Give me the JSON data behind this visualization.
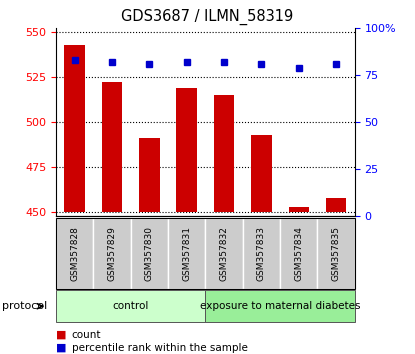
{
  "title": "GDS3687 / ILMN_58319",
  "samples": [
    "GSM357828",
    "GSM357829",
    "GSM357830",
    "GSM357831",
    "GSM357832",
    "GSM357833",
    "GSM357834",
    "GSM357835"
  ],
  "counts": [
    543,
    522,
    491,
    519,
    515,
    493,
    453,
    458
  ],
  "percentiles": [
    83,
    82,
    81,
    82,
    82,
    81,
    79,
    81
  ],
  "ylim_left": [
    448,
    552
  ],
  "ylim_right": [
    0,
    100
  ],
  "yticks_left": [
    450,
    475,
    500,
    525,
    550
  ],
  "yticks_right": [
    0,
    25,
    50,
    75,
    100
  ],
  "ytick_labels_right": [
    "0",
    "25",
    "50",
    "75",
    "100%"
  ],
  "bar_color": "#cc0000",
  "marker_color": "#0000cc",
  "bar_bottom": 450,
  "groups": [
    {
      "label": "control",
      "start": 0,
      "end": 4,
      "color": "#ccffcc"
    },
    {
      "label": "exposure to maternal diabetes",
      "start": 4,
      "end": 8,
      "color": "#99ee99"
    }
  ],
  "group_row_label": "protocol",
  "tick_area_bg": "#cccccc",
  "grid_color": "black",
  "grid_style": "dotted"
}
